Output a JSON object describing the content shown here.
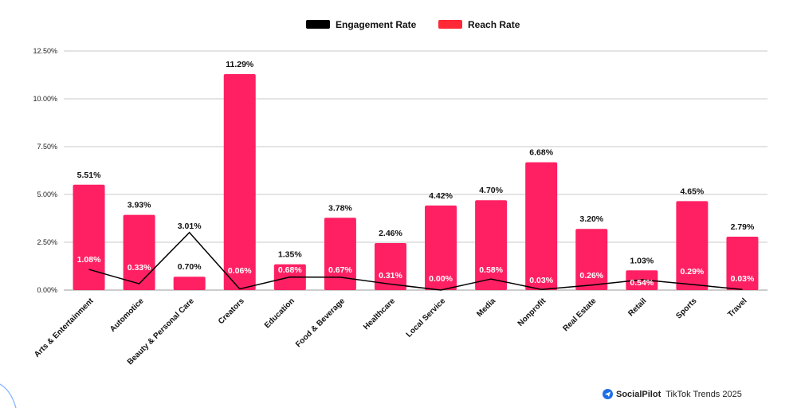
{
  "chart_data": {
    "type": "bar",
    "categories": [
      "Arts & Entertainment",
      "Automotice",
      "Beauty & Personal Care",
      "Creators",
      "Education",
      "Food & Beverage",
      "Healthcare",
      "Local Service",
      "Media",
      "Nonprofit",
      "Real Estate",
      "Retail",
      "Sports",
      "Travel"
    ],
    "series": [
      {
        "name": "Reach Rate",
        "kind": "bar",
        "color": "#ff2063",
        "values": [
          5.51,
          3.93,
          0.7,
          11.29,
          1.35,
          3.78,
          2.46,
          4.42,
          4.7,
          6.68,
          3.2,
          1.03,
          4.65,
          2.79
        ],
        "labels": [
          "5.51%",
          "3.93%",
          "0.70%",
          "11.29%",
          "1.35%",
          "3.78%",
          "2.46%",
          "4.42%",
          "4.70%",
          "6.68%",
          "3.20%",
          "1.03%",
          "4.65%",
          "2.79%"
        ]
      },
      {
        "name": "Engagement Rate",
        "kind": "line",
        "color": "#000000",
        "values": [
          1.08,
          0.33,
          3.01,
          0.06,
          0.68,
          0.67,
          0.31,
          0.0,
          0.58,
          0.03,
          0.26,
          0.54,
          0.29,
          0.03
        ],
        "labels": [
          "1.08%",
          "0.33%",
          "3.01%",
          "0.06%",
          "0.68%",
          "0.67%",
          "0.31%",
          "0.00%",
          "0.58%",
          "0.03%",
          "0.26%",
          "0.54%",
          "0.29%",
          "0.03%"
        ]
      }
    ],
    "yticks": [
      "0.00%",
      "2.50%",
      "5.00%",
      "7.50%",
      "10.00%",
      "12.50%"
    ],
    "ylim": [
      0,
      12.5
    ],
    "grid": true,
    "legend": "top-center",
    "legend_colors": {
      "Engagement Rate": "#000000",
      "Reach Rate": "#ff2837"
    }
  },
  "brand": {
    "name": "SocialPilot",
    "caption": "TikTok Trends 2025",
    "icon": "paper-plane-icon",
    "color": "#1d6fe8"
  }
}
